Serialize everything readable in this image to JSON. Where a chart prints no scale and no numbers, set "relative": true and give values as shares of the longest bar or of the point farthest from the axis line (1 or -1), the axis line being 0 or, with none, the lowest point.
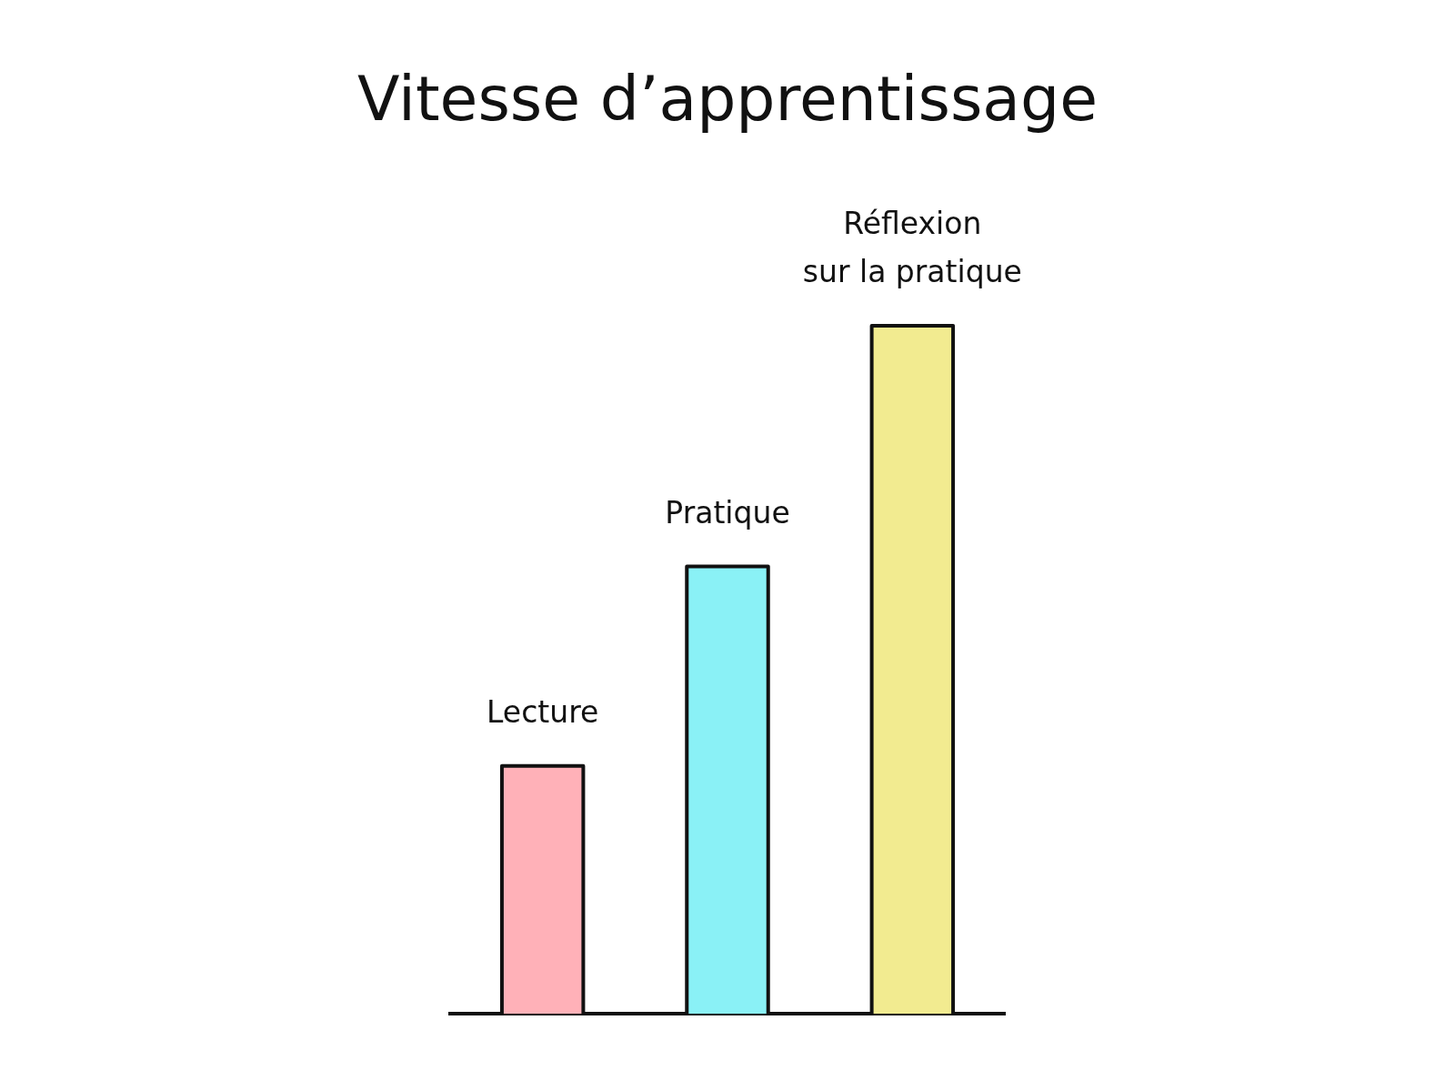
{
  "chart_data": {
    "type": "bar",
    "title": "Vitesse d’apprentissage",
    "categories": [
      "Lecture",
      "Pratique",
      "Réflexion sur la pratique"
    ],
    "values": [
      0.36,
      0.65,
      1
    ],
    "colors": [
      "#ffb1b8",
      "#8af1f6",
      "#f2eb90"
    ],
    "relative": true
  }
}
